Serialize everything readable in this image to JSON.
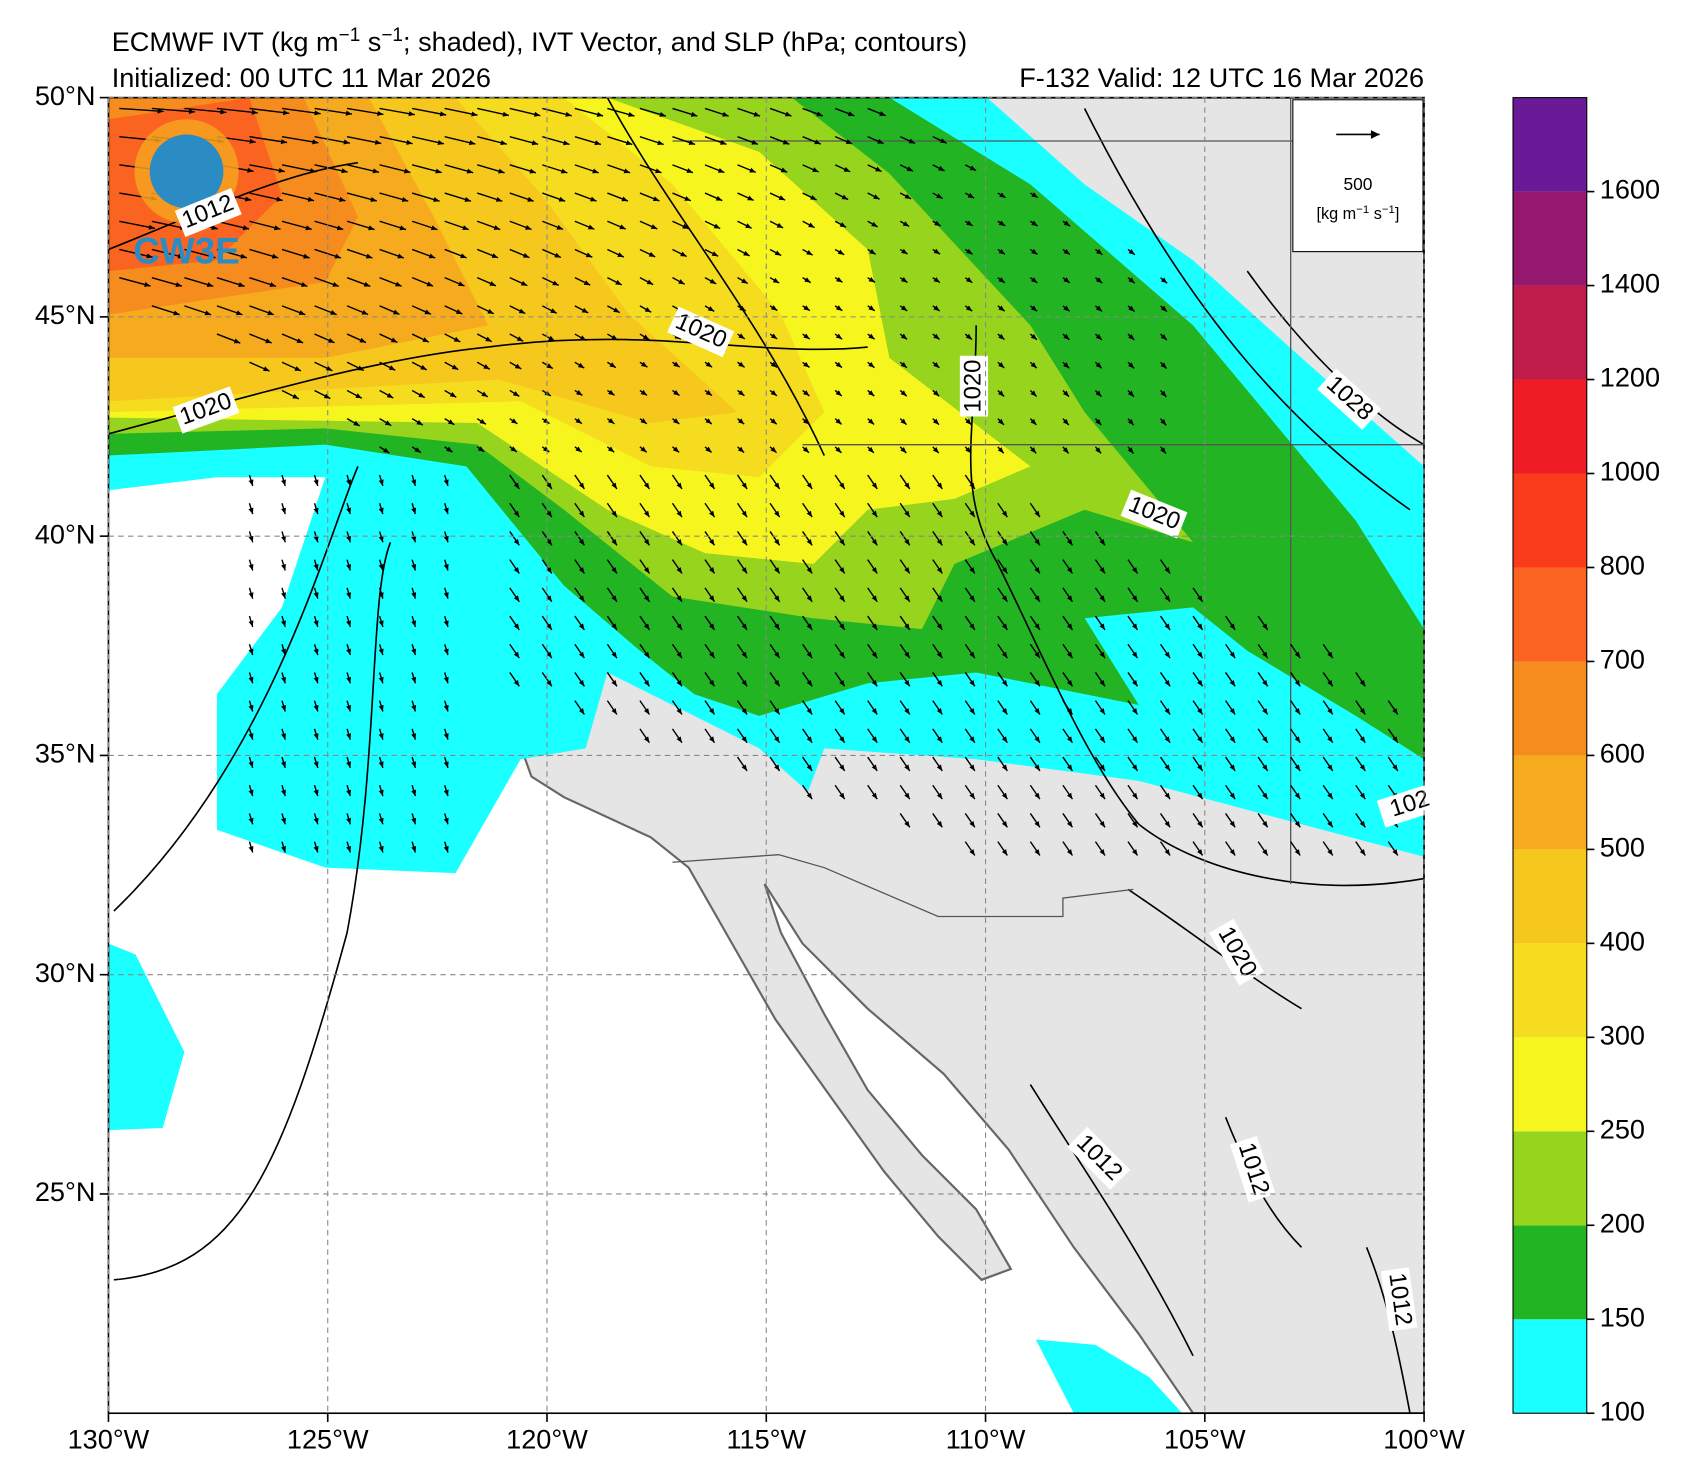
{
  "chart_data": {
    "type": "map",
    "title": [
      "ECMWF IVT (kg m",
      "−1",
      " s",
      "−1",
      "; shaded), IVT Vector, and SLP (hPa; contours)"
    ],
    "initialized": "Initialized: 00 UTC 11 Mar 2026",
    "valid": "F-132  Valid: 12 UTC 16 Mar 2026",
    "xlim": [
      -130,
      -100
    ],
    "ylim": [
      20,
      50
    ],
    "xticks": [
      {
        "value": -130,
        "label": "130°W"
      },
      {
        "value": -125,
        "label": "125°W"
      },
      {
        "value": -120,
        "label": "120°W"
      },
      {
        "value": -115,
        "label": "115°W"
      },
      {
        "value": -110,
        "label": "110°W"
      },
      {
        "value": -105,
        "label": "105°W"
      },
      {
        "value": -100,
        "label": "100°W"
      }
    ],
    "yticks": [
      {
        "value": 25,
        "label": "25°N"
      },
      {
        "value": 30,
        "label": "30°N"
      },
      {
        "value": 35,
        "label": "35°N"
      },
      {
        "value": 40,
        "label": "40°N"
      },
      {
        "value": 45,
        "label": "45°N"
      },
      {
        "value": 50,
        "label": "50°N"
      }
    ],
    "grid": true,
    "colorbar": {
      "clim": [
        100,
        1800
      ],
      "levels": [
        100,
        150,
        200,
        250,
        300,
        400,
        500,
        600,
        700,
        800,
        1000,
        1200,
        1400,
        1600
      ],
      "colors": [
        "#1affff",
        "#22b422",
        "#96d41e",
        "#f6f61e",
        "#f6dc1e",
        "#f6c81e",
        "#f6aa1e",
        "#f68c1e",
        "#fa6420",
        "#fa3c1c",
        "#ee1c24",
        "#c01c4a",
        "#96186e",
        "#6a1a96"
      ]
    },
    "vector_legend": {
      "value": 500,
      "units": [
        "[kg m",
        "−1",
        " s",
        "−1",
        "]"
      ]
    },
    "contour_labels": [
      "1012",
      "1020",
      "1020",
      "1020",
      "1020",
      "1028",
      "102",
      "1020",
      "1012",
      "1012",
      "1012"
    ],
    "logo_text": "CW3E"
  }
}
